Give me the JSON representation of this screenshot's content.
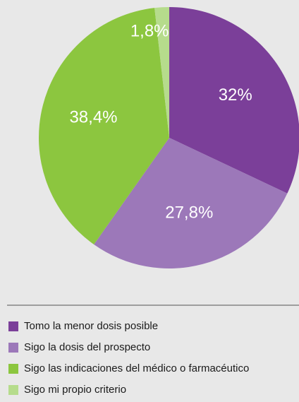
{
  "chart_data": {
    "type": "pie",
    "categories": [
      "Tomo la menor dosis posible",
      "Sigo la dosis del prospecto",
      "Sigo las indicaciones del médico o farmacéutico",
      "Sigo mi propio criterio"
    ],
    "values": [
      32,
      27.8,
      38.4,
      1.8
    ],
    "value_labels": [
      "32%",
      "27,8%",
      "38,4%",
      "1,8%"
    ],
    "colors": [
      "#7b3f99",
      "#9c78b9",
      "#8cc63f",
      "#b6dc8c"
    ]
  }
}
